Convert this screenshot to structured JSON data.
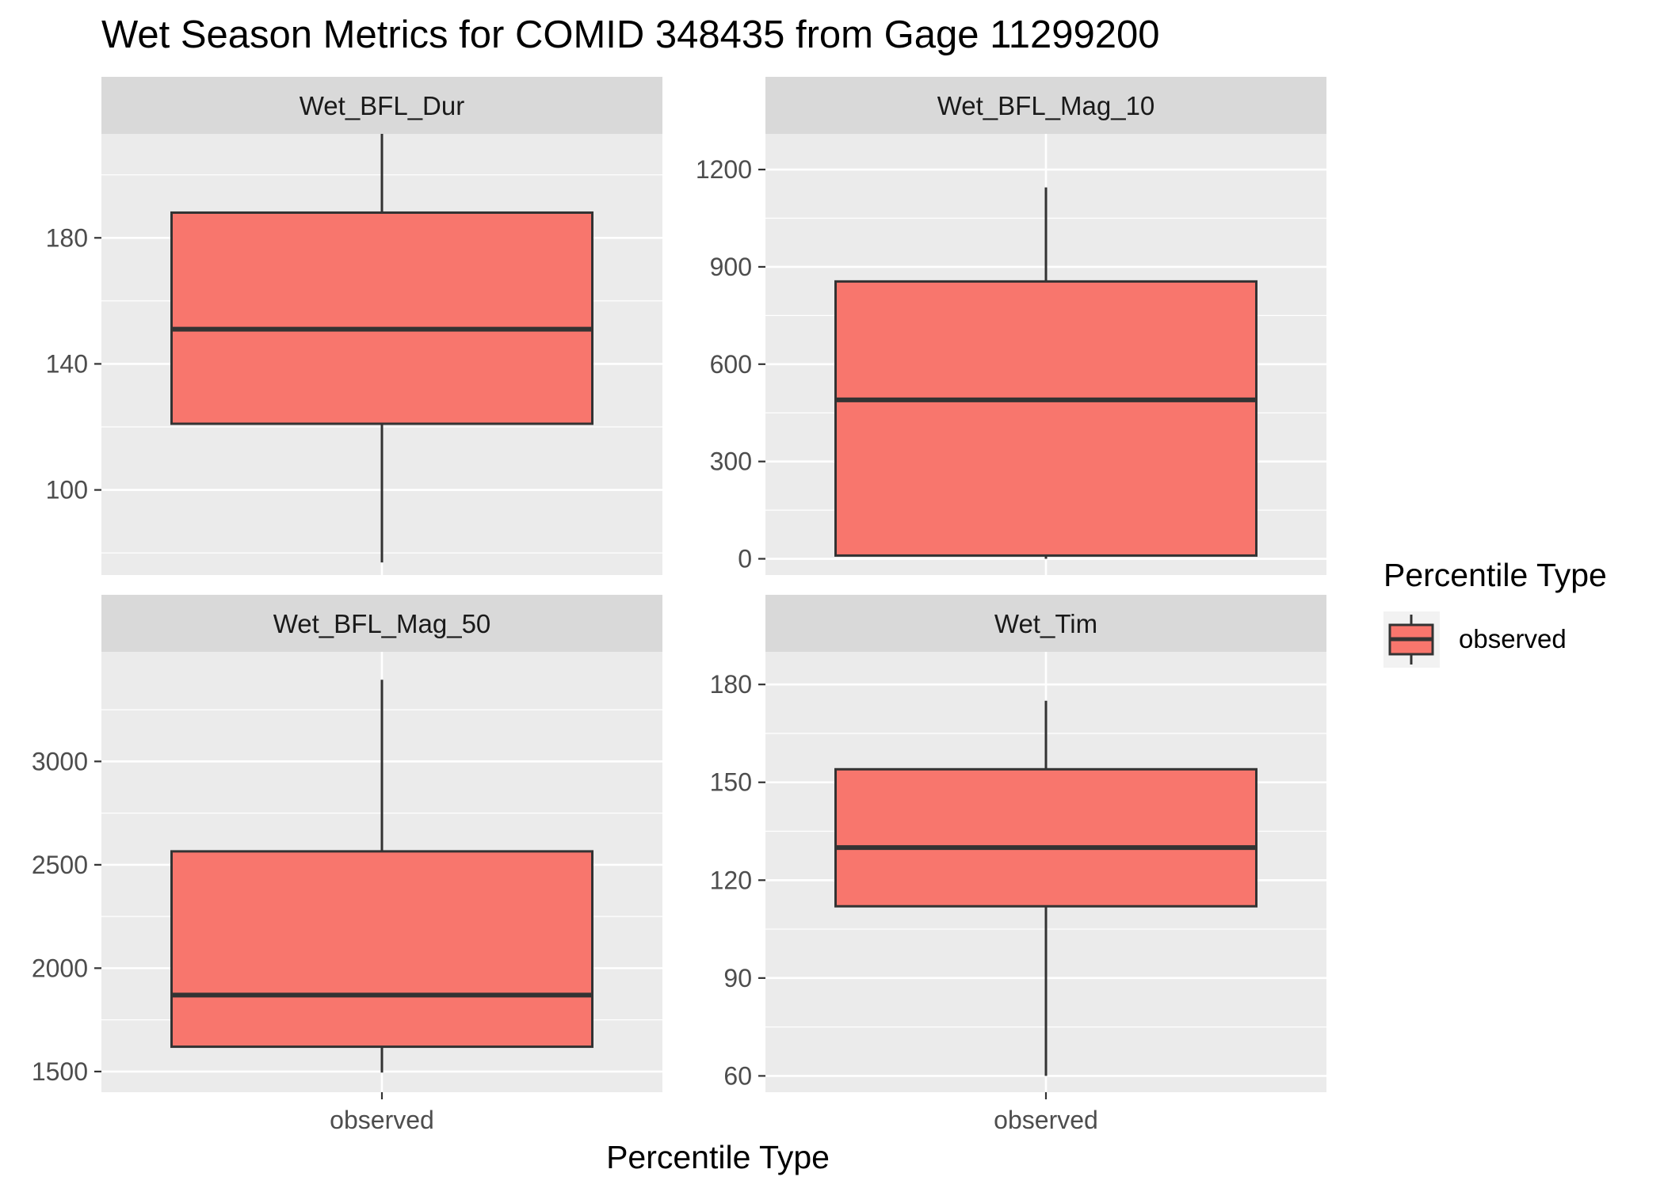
{
  "chart_data": {
    "type": "boxplot",
    "title": "Wet Season Metrics for COMID 348435 from Gage 11299200",
    "xlabel": "Percentile Type",
    "categories": [
      "observed"
    ],
    "legend": {
      "title": "Percentile Type",
      "entries": [
        "observed"
      ],
      "placement": "right"
    },
    "colors": {
      "box_fill": "#F8766D",
      "box_stroke": "#333333",
      "panel_bg": "#EBEBEB",
      "strip_bg": "#D9D9D9",
      "grid": "#FFFFFF"
    },
    "panels": [
      {
        "name": "Wet_BFL_Dur",
        "ylim": [
          73,
          213
        ],
        "y_ticks": [
          100,
          140,
          180
        ],
        "stats": {
          "category": "observed",
          "min": 77,
          "q1": 121,
          "median": 151,
          "q3": 188,
          "max": 213
        }
      },
      {
        "name": "Wet_BFL_Mag_10",
        "ylim": [
          -50,
          1310
        ],
        "y_ticks": [
          0,
          300,
          600,
          900,
          1200
        ],
        "stats": {
          "category": "observed",
          "min": 0,
          "q1": 10,
          "median": 490,
          "q3": 855,
          "max": 1145
        }
      },
      {
        "name": "Wet_BFL_Mag_50",
        "ylim": [
          1400,
          3530
        ],
        "y_ticks": [
          1500,
          2000,
          2500,
          3000
        ],
        "stats": {
          "category": "observed",
          "min": 1495,
          "q1": 1620,
          "median": 1870,
          "q3": 2565,
          "max": 3395
        }
      },
      {
        "name": "Wet_Tim",
        "ylim": [
          55,
          190
        ],
        "y_ticks": [
          60,
          90,
          120,
          150,
          180
        ],
        "stats": {
          "category": "observed",
          "min": 60,
          "q1": 112,
          "median": 130,
          "q3": 154,
          "max": 175
        }
      }
    ]
  }
}
